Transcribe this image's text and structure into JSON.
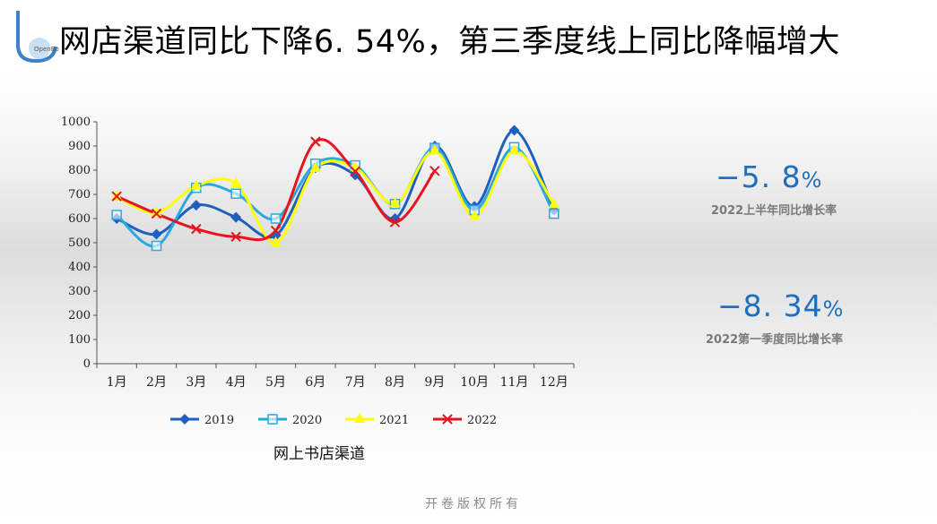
{
  "header": {
    "logo_text": "OpenBook",
    "title": "网店渠道同比下降6. 54%，第三季度线上同比降幅增大"
  },
  "stats": [
    {
      "value": "−5. 8",
      "unit": "%",
      "label": "2022上半年同比增长率"
    },
    {
      "value": "−8. 34",
      "unit": "%",
      "label": "2022第一季度同比增长率"
    }
  ],
  "footer": {
    "text": "开卷版权所有"
  },
  "colors": {
    "accent": "#1f6fbf"
  },
  "chart_data": {
    "type": "line",
    "title": "",
    "xlabel": "网上书店渠道",
    "ylabel": "",
    "categories": [
      "1月",
      "2月",
      "3月",
      "4月",
      "5月",
      "6月",
      "7月",
      "8月",
      "9月",
      "10月",
      "11月",
      "12月"
    ],
    "yticks": [
      "0",
      "100",
      "200",
      "300",
      "400",
      "500",
      "600",
      "700",
      "800",
      "900",
      "1000"
    ],
    "ylim": [
      0,
      1000
    ],
    "grid": false,
    "legend_position": "bottom",
    "series": [
      {
        "name": "2019",
        "color": "#1f5fbf",
        "marker": "diamond",
        "values": [
          600,
          535,
          655,
          605,
          530,
          810,
          780,
          600,
          900,
          650,
          965,
          635
        ]
      },
      {
        "name": "2020",
        "color": "#2aa8e0",
        "marker": "square",
        "values": [
          615,
          487,
          727,
          703,
          600,
          827,
          820,
          660,
          892,
          635,
          895,
          620
        ]
      },
      {
        "name": "2021",
        "color": "#ffff00",
        "marker": "triangle",
        "values": [
          690,
          625,
          735,
          745,
          500,
          808,
          810,
          662,
          880,
          610,
          880,
          658
        ]
      },
      {
        "name": "2022",
        "color": "#e8141e",
        "marker": "x",
        "values": [
          692,
          620,
          557,
          525,
          550,
          918,
          795,
          585,
          797,
          null,
          null,
          null
        ]
      }
    ]
  }
}
